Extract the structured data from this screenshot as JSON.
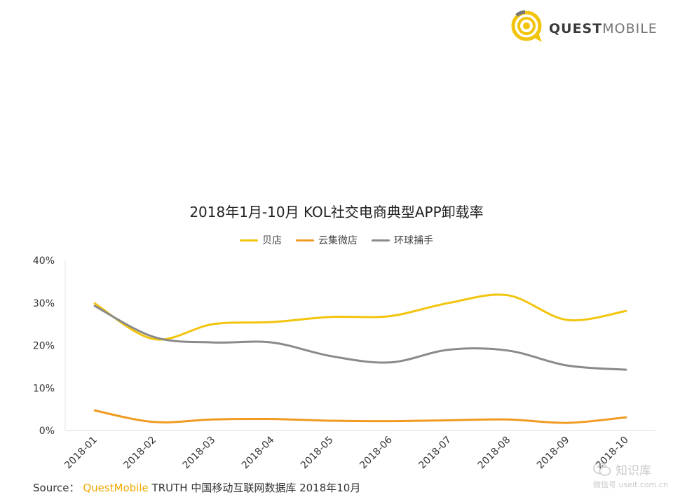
{
  "logo": {
    "text_bold": "QUEST",
    "text_light": "MOBILE"
  },
  "colors": {
    "beidian": "#f2c40c",
    "yunji": "#f09a21",
    "huanqiu": "#8a8a8a",
    "logo_yellow": "#f2c40c"
  },
  "chart_data": {
    "type": "line",
    "title": "2018年1月-10月 KOL社交电商典型APP卸载率",
    "categories": [
      "2018-01",
      "2018-02",
      "2018-03",
      "2018-04",
      "2018-05",
      "2018-06",
      "2018-07",
      "2018-08",
      "2018-09",
      "2018-10"
    ],
    "series": [
      {
        "name": "贝店",
        "color": "#f2c40c",
        "values": [
          29.9,
          21.5,
          25.0,
          25.5,
          26.7,
          26.9,
          30.0,
          31.8,
          26.0,
          28.1
        ]
      },
      {
        "name": "云集微店",
        "color": "#f09a21",
        "values": [
          4.7,
          2.0,
          2.6,
          2.7,
          2.3,
          2.2,
          2.4,
          2.6,
          1.8,
          3.1
        ]
      },
      {
        "name": "环球捕手",
        "color": "#8a8a8a",
        "values": [
          29.3,
          22.0,
          20.7,
          20.7,
          17.5,
          16.0,
          19.0,
          18.8,
          15.3,
          14.3
        ]
      }
    ],
    "yticks": [
      "40%",
      "30%",
      "20%",
      "10%",
      "0%"
    ],
    "ylim": [
      0,
      40
    ],
    "legend_position": "top-center",
    "grid": false
  },
  "footer": {
    "source_label": "Source：",
    "brand": "QuestMobile",
    "text": "TRUTH 中国移动互联网数据库 2018年10月"
  },
  "watermark": {
    "name": "知识库",
    "sub": "微信号 useit.com.cn"
  }
}
